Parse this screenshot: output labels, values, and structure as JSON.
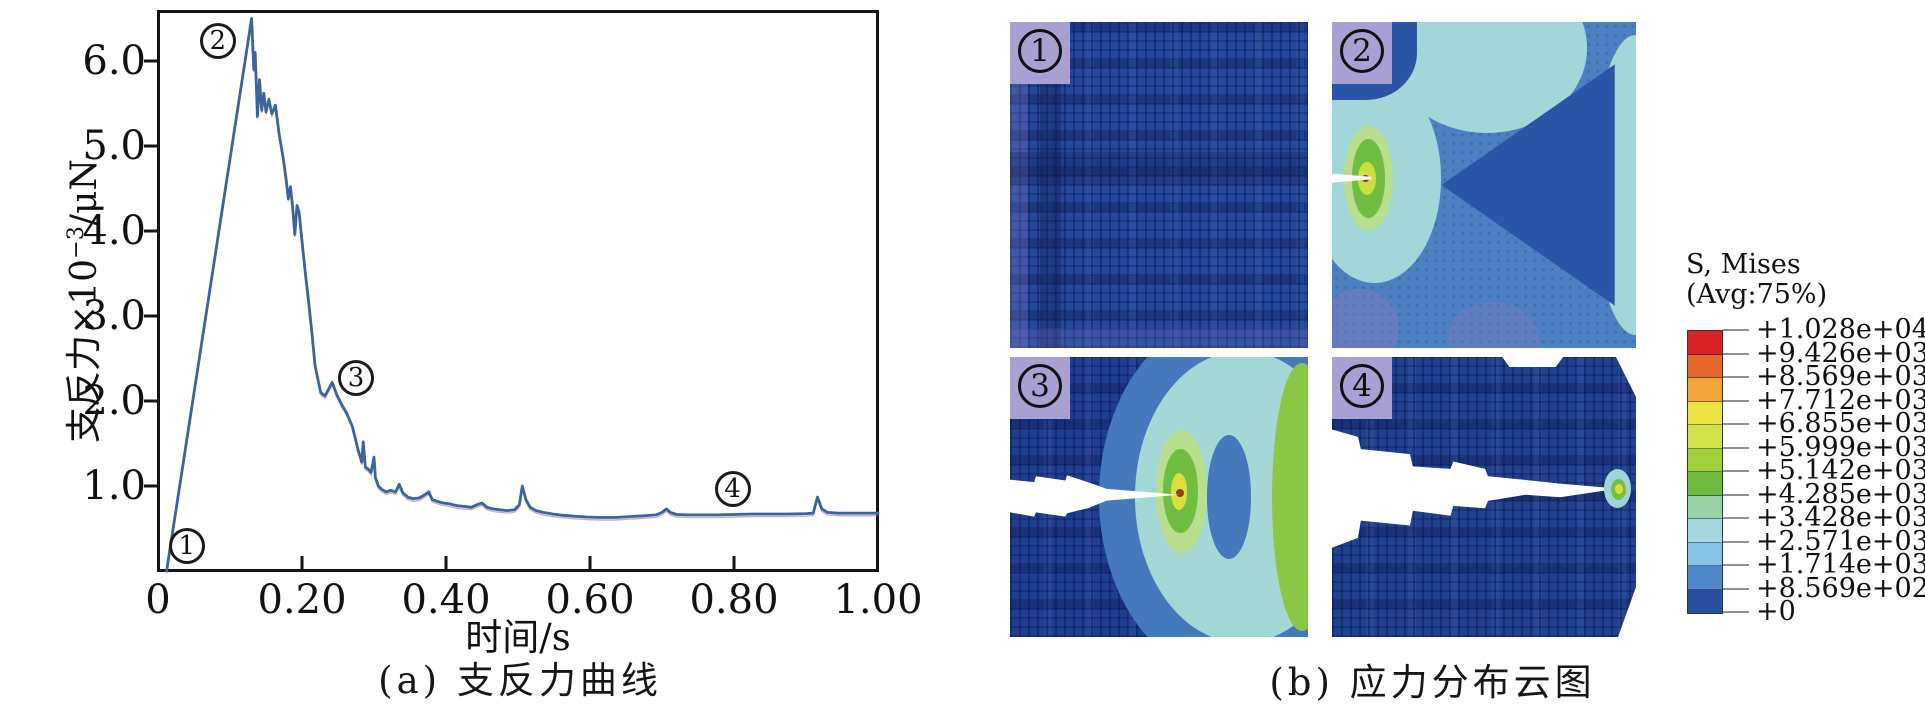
{
  "panel_a": {
    "caption": "(a) 支反力曲线",
    "x_axis": {
      "title": "时间/s",
      "ticks": [
        {
          "value": 0,
          "label": "0"
        },
        {
          "value": 0.2,
          "label": "0.20"
        },
        {
          "value": 0.4,
          "label": "0.40"
        },
        {
          "value": 0.6,
          "label": "0.60"
        },
        {
          "value": 0.8,
          "label": "0.80"
        },
        {
          "value": 1.0,
          "label": "1.00"
        }
      ]
    },
    "y_axis": {
      "title_main": "支反力×10",
      "title_sup": "−3",
      "title_unit": "/μN",
      "ticks": [
        {
          "value": 6,
          "label": "6.0"
        },
        {
          "value": 5,
          "label": "5.0"
        },
        {
          "value": 4,
          "label": "4.0"
        },
        {
          "value": 3,
          "label": "3.0"
        },
        {
          "value": 2,
          "label": "2.0"
        },
        {
          "value": 1,
          "label": "1.0"
        }
      ]
    },
    "markers": [
      {
        "digit": "1",
        "t": 0.04,
        "v": 0.3
      },
      {
        "digit": "2",
        "t": 0.083,
        "v": 6.24
      },
      {
        "digit": "3",
        "t": 0.275,
        "v": 2.27
      },
      {
        "digit": "4",
        "t": 0.798,
        "v": 0.97
      }
    ]
  },
  "panel_b": {
    "caption": "(b) 应力分布云图",
    "subpanels": [
      {
        "digit": "1"
      },
      {
        "digit": "2"
      },
      {
        "digit": "3"
      },
      {
        "digit": "4"
      }
    ],
    "legend": {
      "title1": "S, Mises",
      "title2": "(Avg:75%)",
      "labels": [
        "+1.028e+04",
        "+9.426e+03",
        "+8.569e+03",
        "+7.712e+03",
        "+6.855e+03",
        "+5.999e+03",
        "+5.142e+03",
        "+4.285e+03",
        "+3.428e+03",
        "+2.571e+03",
        "+1.714e+03",
        "+8.569e+02",
        "+0"
      ],
      "colors": [
        "#d92226",
        "#e2672c",
        "#f0a53b",
        "#eae343",
        "#cfe24a",
        "#9ed03e",
        "#6cbb40",
        "#97d2a9",
        "#a4dade",
        "#86c3e6",
        "#4e89cc",
        "#2a51a0"
      ]
    }
  },
  "chart_data": {
    "type": "line",
    "title": "支反力曲线",
    "xlabel": "时间/s",
    "ylabel": "支反力×10⁻³/μN",
    "xlim": [
      0,
      1.0
    ],
    "ylim": [
      0,
      6.6
    ],
    "grid": false,
    "legend_position": "none",
    "x": [
      0.012,
      0.13,
      0.133,
      0.135,
      0.138,
      0.141,
      0.144,
      0.147,
      0.15,
      0.154,
      0.158,
      0.163,
      0.168,
      0.174,
      0.178,
      0.181,
      0.184,
      0.187,
      0.19,
      0.193,
      0.196,
      0.2,
      0.204,
      0.209,
      0.214,
      0.218,
      0.226,
      0.232,
      0.237,
      0.242,
      0.248,
      0.255,
      0.262,
      0.27,
      0.278,
      0.283,
      0.285,
      0.288,
      0.292,
      0.296,
      0.3,
      0.302,
      0.306,
      0.311,
      0.317,
      0.323,
      0.33,
      0.335,
      0.34,
      0.347,
      0.355,
      0.363,
      0.371,
      0.376,
      0.381,
      0.388,
      0.396,
      0.405,
      0.415,
      0.425,
      0.435,
      0.443,
      0.45,
      0.457,
      0.465,
      0.475,
      0.485,
      0.495,
      0.502,
      0.506,
      0.511,
      0.517,
      0.525,
      0.535,
      0.548,
      0.562,
      0.578,
      0.595,
      0.615,
      0.635,
      0.655,
      0.675,
      0.692,
      0.7,
      0.706,
      0.712,
      0.72,
      0.735,
      0.755,
      0.775,
      0.8,
      0.825,
      0.85,
      0.875,
      0.9,
      0.91,
      0.916,
      0.922,
      0.93,
      0.945,
      0.965,
      0.985,
      1.0
    ],
    "series": [
      {
        "name": "支反力",
        "color": "#3c639c",
        "values": [
          0.0,
          6.5,
          5.9,
          6.1,
          5.35,
          5.78,
          5.42,
          5.62,
          5.4,
          5.55,
          5.38,
          5.48,
          5.15,
          4.85,
          4.6,
          4.38,
          4.52,
          4.28,
          3.96,
          4.3,
          4.22,
          3.88,
          3.55,
          3.18,
          2.78,
          2.42,
          2.1,
          2.06,
          2.14,
          2.22,
          2.08,
          1.96,
          1.86,
          1.7,
          1.42,
          1.28,
          1.52,
          1.22,
          1.2,
          1.16,
          1.34,
          1.1,
          1.0,
          0.96,
          0.93,
          0.95,
          0.93,
          1.02,
          0.92,
          0.87,
          0.85,
          0.86,
          0.9,
          0.93,
          0.84,
          0.82,
          0.8,
          0.79,
          0.77,
          0.76,
          0.75,
          0.78,
          0.8,
          0.75,
          0.73,
          0.72,
          0.71,
          0.72,
          0.78,
          1.0,
          0.84,
          0.75,
          0.71,
          0.69,
          0.67,
          0.655,
          0.645,
          0.635,
          0.63,
          0.63,
          0.64,
          0.65,
          0.66,
          0.69,
          0.73,
          0.69,
          0.665,
          0.66,
          0.66,
          0.66,
          0.665,
          0.67,
          0.67,
          0.67,
          0.675,
          0.68,
          0.87,
          0.73,
          0.69,
          0.68,
          0.68,
          0.68,
          0.68
        ]
      }
    ],
    "annotations": [
      {
        "text": "①",
        "x": 0.04,
        "y": 0.3
      },
      {
        "text": "②",
        "x": 0.083,
        "y": 6.24
      },
      {
        "text": "③",
        "x": 0.275,
        "y": 2.27
      },
      {
        "text": "④",
        "x": 0.798,
        "y": 0.97
      }
    ]
  }
}
